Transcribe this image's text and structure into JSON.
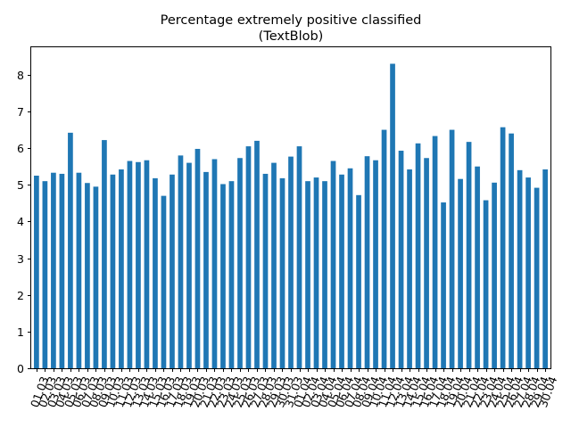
{
  "chart_data": {
    "type": "bar",
    "title": "Percentage extremely positive classified",
    "subtitle": "(TextBlob)",
    "xlabel": "",
    "ylabel": "",
    "ylim": [
      0,
      8.75
    ],
    "yticks": [
      0,
      1,
      2,
      3,
      4,
      5,
      6,
      7,
      8
    ],
    "grid": false,
    "bar_color": "#1f77b4",
    "categories": [
      "01.03",
      "02.03",
      "03.03",
      "04.03",
      "05.03",
      "06.03",
      "07.03",
      "08.03",
      "09.03",
      "10.03",
      "11.03",
      "12.03",
      "13.03",
      "14.03",
      "15.03",
      "16.03",
      "17.03",
      "18.03",
      "19.03",
      "20.03",
      "21.03",
      "22.03",
      "23.03",
      "24.03",
      "25.03",
      "26.03",
      "27.03",
      "28.03",
      "29.03",
      "30.03",
      "31.03",
      "01.04",
      "02.04",
      "03.04",
      "04.04",
      "05.04",
      "06.04",
      "07.04",
      "08.04",
      "09.04",
      "10.04",
      "11.04",
      "12.04",
      "13.04",
      "14.04",
      "15.04",
      "16.04",
      "17.04",
      "18.04",
      "19.04",
      "20.04",
      "21.04",
      "22.04",
      "23.04",
      "24.04",
      "25.04",
      "26.04",
      "27.04",
      "28.04",
      "29.04",
      "30.04"
    ],
    "values": [
      5.25,
      5.1,
      5.33,
      5.3,
      6.42,
      5.33,
      5.05,
      4.95,
      6.22,
      5.28,
      5.42,
      5.65,
      5.62,
      5.67,
      5.18,
      4.7,
      5.28,
      5.8,
      5.6,
      5.98,
      5.35,
      5.7,
      5.02,
      5.1,
      5.73,
      6.05,
      6.2,
      5.3,
      5.6,
      5.18,
      5.77,
      6.05,
      5.1,
      5.2,
      5.1,
      5.65,
      5.28,
      5.45,
      4.72,
      5.78,
      5.67,
      6.5,
      8.3,
      5.93,
      5.42,
      6.13,
      5.73,
      6.33,
      4.52,
      6.5,
      5.16,
      6.17,
      5.5,
      4.58,
      5.06,
      6.57,
      6.4,
      5.4,
      5.2,
      4.92,
      5.42
    ]
  }
}
